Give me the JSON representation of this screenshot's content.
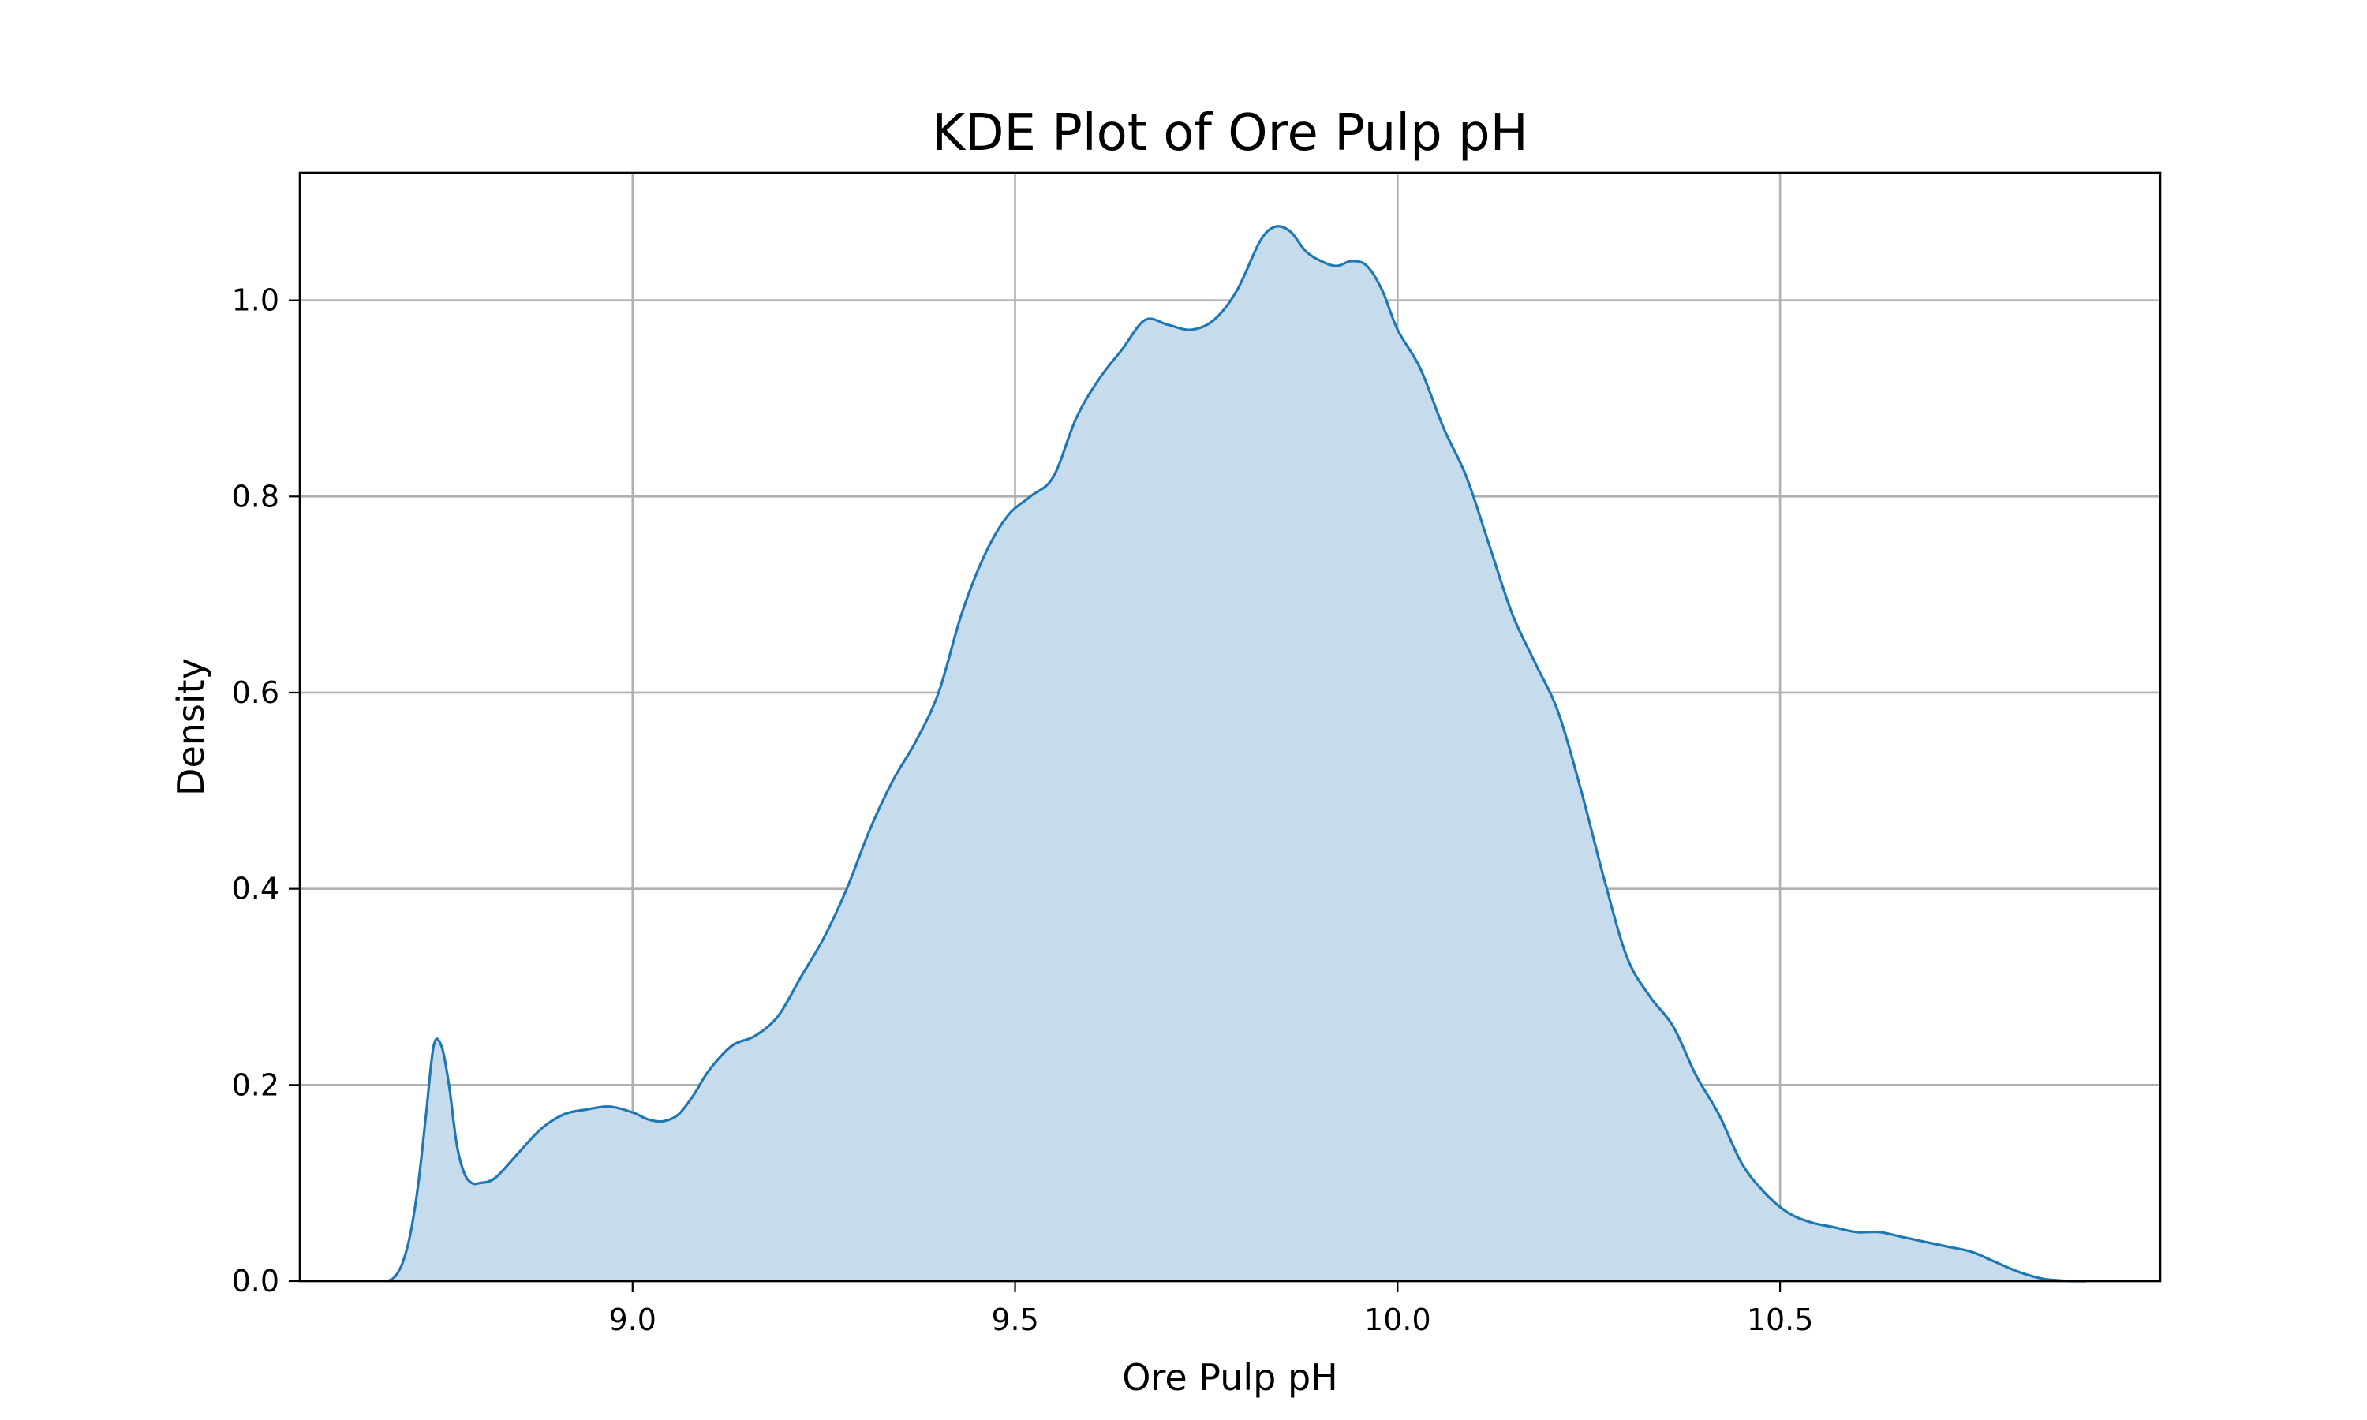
{
  "chart_data": {
    "type": "area",
    "title": "KDE Plot of Ore Pulp pH",
    "xlabel": "Ore Pulp pH",
    "ylabel": "Density",
    "xlim": [
      8.565,
      10.997
    ],
    "ylim": [
      0,
      1.13
    ],
    "xticks": [
      9.0,
      9.5,
      10.0,
      10.5
    ],
    "xtick_labels": [
      "9.0",
      "9.5",
      "10.0",
      "10.5"
    ],
    "yticks": [
      0.0,
      0.2,
      0.4,
      0.6,
      0.8,
      1.0
    ],
    "ytick_labels": [
      "0.0",
      "0.2",
      "0.4",
      "0.6",
      "0.8",
      "1.0"
    ],
    "grid": true,
    "line_color": "#1f77b4",
    "fill_color": "#c6dcec",
    "series": [
      {
        "x": [
          8.68,
          8.69,
          8.7,
          8.71,
          8.72,
          8.73,
          8.74,
          8.75,
          8.76,
          8.77,
          8.78,
          8.79,
          8.8,
          8.82,
          8.85,
          8.88,
          8.91,
          8.94,
          8.97,
          9.0,
          9.02,
          9.04,
          9.06,
          9.08,
          9.1,
          9.13,
          9.16,
          9.19,
          9.22,
          9.25,
          9.28,
          9.31,
          9.34,
          9.37,
          9.4,
          9.43,
          9.46,
          9.49,
          9.52,
          9.55,
          9.58,
          9.61,
          9.64,
          9.67,
          9.7,
          9.73,
          9.76,
          9.79,
          9.82,
          9.84,
          9.86,
          9.88,
          9.9,
          9.92,
          9.94,
          9.96,
          9.98,
          10.0,
          10.03,
          10.06,
          10.09,
          10.12,
          10.15,
          10.18,
          10.21,
          10.24,
          10.27,
          10.3,
          10.33,
          10.36,
          10.39,
          10.42,
          10.45,
          10.48,
          10.51,
          10.54,
          10.57,
          10.6,
          10.63,
          10.66,
          10.69,
          10.72,
          10.75,
          10.78,
          10.81,
          10.84,
          10.86,
          10.88,
          10.9
        ],
        "y": [
          0.0,
          0.005,
          0.02,
          0.05,
          0.1,
          0.17,
          0.24,
          0.24,
          0.2,
          0.14,
          0.11,
          0.1,
          0.1,
          0.105,
          0.13,
          0.155,
          0.17,
          0.175,
          0.178,
          0.172,
          0.165,
          0.163,
          0.17,
          0.19,
          0.215,
          0.24,
          0.25,
          0.27,
          0.31,
          0.35,
          0.4,
          0.46,
          0.51,
          0.55,
          0.6,
          0.68,
          0.74,
          0.78,
          0.8,
          0.82,
          0.88,
          0.92,
          0.95,
          0.98,
          0.975,
          0.97,
          0.98,
          1.01,
          1.06,
          1.075,
          1.07,
          1.05,
          1.04,
          1.035,
          1.04,
          1.035,
          1.01,
          0.97,
          0.93,
          0.87,
          0.82,
          0.75,
          0.68,
          0.63,
          0.58,
          0.5,
          0.41,
          0.33,
          0.29,
          0.26,
          0.21,
          0.17,
          0.12,
          0.09,
          0.07,
          0.06,
          0.055,
          0.05,
          0.05,
          0.045,
          0.04,
          0.035,
          0.03,
          0.02,
          0.01,
          0.003,
          0.001,
          0.0,
          0.0
        ]
      }
    ]
  }
}
